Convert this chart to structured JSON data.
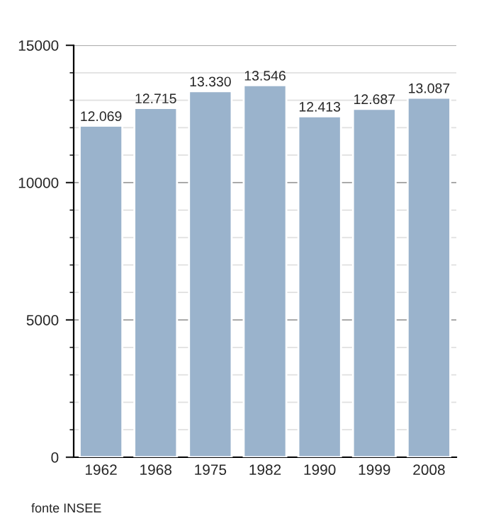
{
  "chart_data": {
    "type": "bar",
    "categories": [
      "1962",
      "1968",
      "1975",
      "1982",
      "1990",
      "1999",
      "2008"
    ],
    "values": [
      12069,
      12715,
      13330,
      13546,
      12413,
      12687,
      13087
    ],
    "value_labels": [
      "12.069",
      "12.715",
      "13.330",
      "13.546",
      "12.413",
      "12.687",
      "13.087"
    ],
    "color": "#9ab3cc",
    "ylim": [
      0,
      15000
    ],
    "yticks": [
      0,
      5000,
      10000,
      15000
    ],
    "grid": "y",
    "annotations": [
      "fonte INSEE"
    ]
  }
}
